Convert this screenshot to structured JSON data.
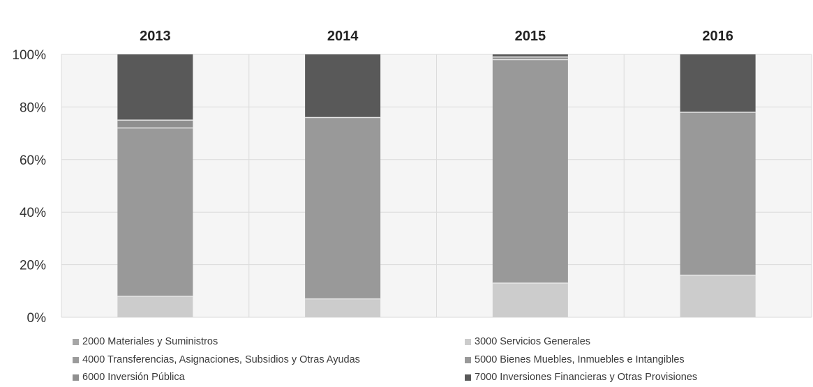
{
  "chart_data": {
    "type": "bar",
    "stacked": true,
    "percent": true,
    "categories": [
      "2013",
      "2014",
      "2015",
      "2016"
    ],
    "ylim": [
      0,
      100
    ],
    "yticks": [
      "0%",
      "20%",
      "40%",
      "60%",
      "80%",
      "100%"
    ],
    "grid": true,
    "legend_position": "bottom",
    "series": [
      {
        "name": "2000 Materiales y Suministros",
        "color": "#a6a6a6",
        "values": [
          0,
          0,
          0,
          0
        ]
      },
      {
        "name": "3000 Servicios Generales",
        "color": "#cccccc",
        "values": [
          8,
          7,
          13,
          16
        ]
      },
      {
        "name": "4000 Transferencias, Asignaciones, Subsidios y Otras Ayudas",
        "color": "#9b9b9b",
        "values": [
          0,
          0,
          0,
          0
        ]
      },
      {
        "name": "5000 Bienes Muebles, Inmuebles e Intangibles",
        "color": "#999999",
        "values": [
          64,
          69,
          85,
          62
        ]
      },
      {
        "name": "6000 Inversión Pública",
        "color": "#8f8f8f",
        "values": [
          3,
          0,
          1,
          0
        ]
      },
      {
        "name": "7000 Inversiones Financieras y Otras Provisiones",
        "color": "#595959",
        "values": [
          25,
          24,
          1,
          22
        ]
      }
    ]
  }
}
